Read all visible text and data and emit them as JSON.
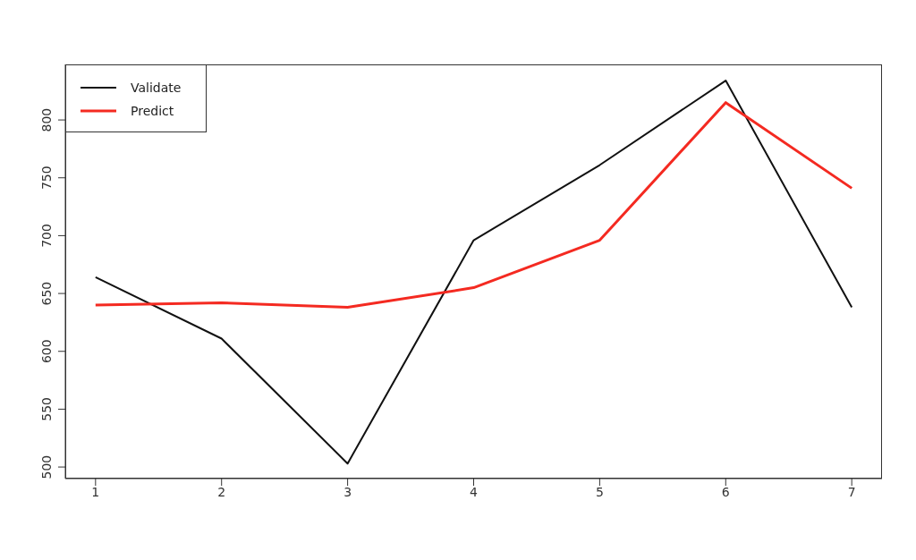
{
  "chart_data": {
    "type": "line",
    "x": [
      1,
      2,
      3,
      4,
      5,
      6,
      7
    ],
    "series": [
      {
        "name": "Validate",
        "color": "#111111",
        "values": [
          664,
          611,
          503,
          696,
          761,
          834,
          638
        ]
      },
      {
        "name": "Predict",
        "color": "#f42a21",
        "values": [
          640,
          642,
          638,
          655,
          696,
          815,
          741
        ]
      }
    ],
    "xlim": [
      0.76,
      7.24
    ],
    "xticks": [
      1,
      2,
      3,
      4,
      5,
      6,
      7
    ],
    "ylim": [
      490,
      848
    ],
    "yticks": [
      500,
      550,
      600,
      650,
      700,
      750,
      800
    ],
    "grid": false,
    "legend": "top left",
    "marker": "none",
    "line_style": "solid"
  }
}
